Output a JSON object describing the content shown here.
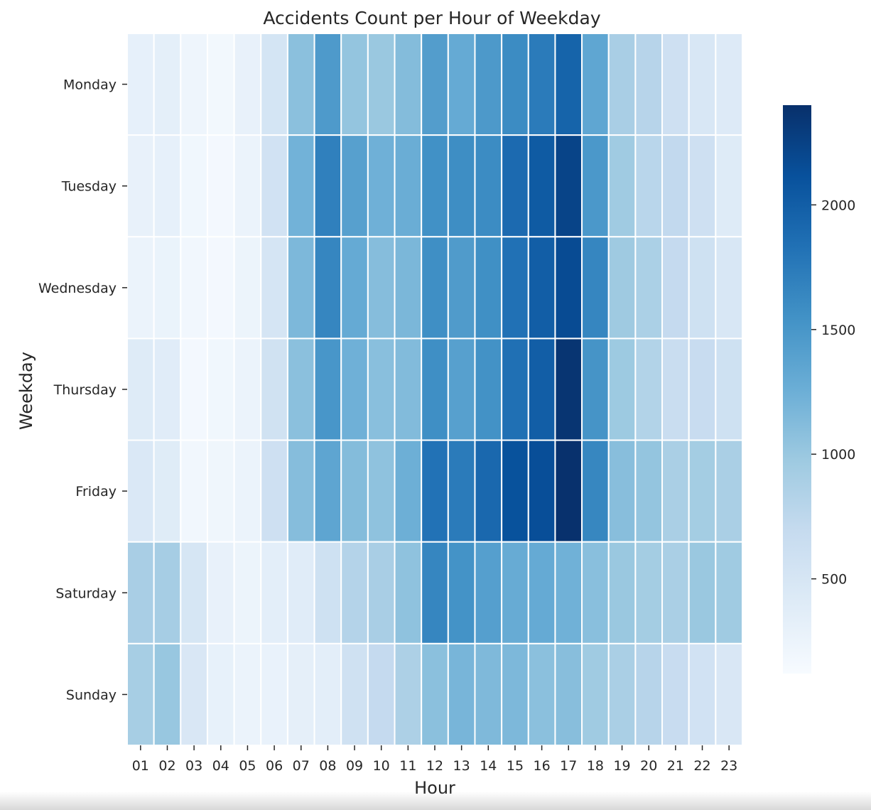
{
  "chart_data": {
    "type": "heatmap",
    "title": "Accidents Count per Hour of Weekday",
    "xlabel": "Hour",
    "ylabel": "Weekday",
    "x": [
      "01",
      "02",
      "03",
      "04",
      "05",
      "06",
      "07",
      "08",
      "09",
      "10",
      "11",
      "12",
      "13",
      "14",
      "15",
      "16",
      "17",
      "18",
      "19",
      "20",
      "21",
      "22",
      "23"
    ],
    "y": [
      "Monday",
      "Tuesday",
      "Wednesday",
      "Thursday",
      "Friday",
      "Saturday",
      "Sunday"
    ],
    "values": [
      [
        310,
        340,
        220,
        180,
        290,
        520,
        1080,
        1460,
        1030,
        1000,
        1120,
        1430,
        1300,
        1470,
        1600,
        1740,
        1950,
        1340,
        900,
        800,
        600,
        480,
        420
      ],
      [
        290,
        310,
        200,
        170,
        260,
        560,
        1220,
        1700,
        1400,
        1240,
        1270,
        1550,
        1580,
        1600,
        1890,
        2030,
        2230,
        1480,
        960,
        780,
        720,
        600,
        410
      ],
      [
        260,
        270,
        190,
        170,
        250,
        510,
        1160,
        1650,
        1300,
        1110,
        1170,
        1570,
        1450,
        1560,
        1830,
        2000,
        2170,
        1650,
        970,
        880,
        700,
        590,
        480
      ],
      [
        400,
        380,
        170,
        200,
        260,
        570,
        1080,
        1500,
        1240,
        1090,
        1130,
        1570,
        1400,
        1540,
        1840,
        2000,
        2360,
        1520,
        980,
        830,
        650,
        670,
        590
      ],
      [
        450,
        390,
        190,
        210,
        260,
        600,
        1110,
        1350,
        1120,
        1060,
        1250,
        1820,
        1740,
        1910,
        2110,
        2140,
        2390,
        1640,
        1100,
        1030,
        890,
        930,
        890
      ],
      [
        900,
        920,
        500,
        290,
        250,
        350,
        380,
        590,
        820,
        900,
        1060,
        1650,
        1530,
        1410,
        1290,
        1300,
        1230,
        1090,
        1000,
        930,
        890,
        1000,
        960
      ],
      [
        910,
        1010,
        470,
        300,
        260,
        280,
        330,
        350,
        580,
        700,
        870,
        1080,
        1190,
        1150,
        1160,
        1080,
        1100,
        960,
        890,
        800,
        670,
        560,
        470
      ]
    ],
    "colorbar": {
      "min": 120,
      "max": 2400,
      "ticks": [
        500,
        1000,
        1500,
        2000
      ],
      "colormap": "Blues"
    },
    "grid": false
  }
}
